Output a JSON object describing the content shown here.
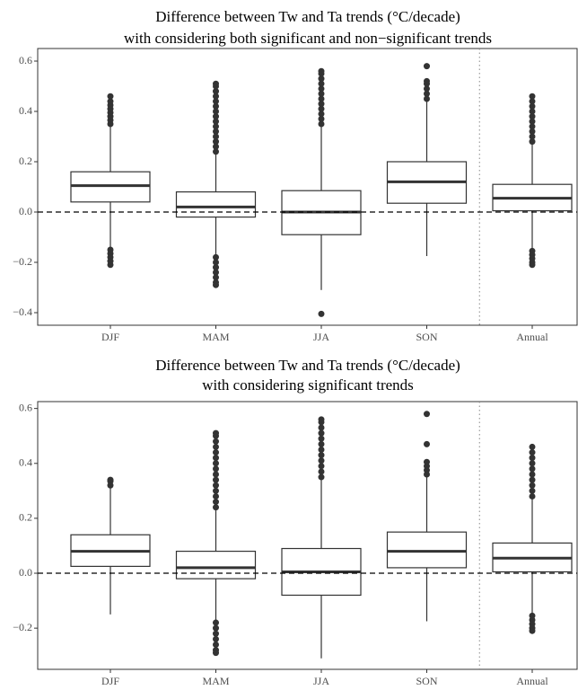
{
  "chart_data": [
    {
      "type": "box",
      "title": "Difference between Tw and Ta trends (°C/decade)",
      "subtitle": "with considering both significant and non−significant trends",
      "categories": [
        "DJF",
        "MAM",
        "JJA",
        "SON",
        "Annual"
      ],
      "boxes": [
        {
          "whislo": -0.14,
          "q1": 0.04,
          "med": 0.105,
          "q3": 0.16,
          "whishi": 0.345,
          "outliers": [
            0.35,
            0.365,
            0.38,
            0.395,
            0.41,
            0.425,
            0.44,
            0.46,
            -0.15,
            -0.165,
            -0.18,
            -0.195,
            -0.21
          ]
        },
        {
          "whislo": -0.17,
          "q1": -0.02,
          "med": 0.02,
          "q3": 0.08,
          "whishi": 0.23,
          "outliers": [
            0.24,
            0.26,
            0.28,
            0.3,
            0.32,
            0.34,
            0.36,
            0.38,
            0.4,
            0.42,
            0.44,
            0.46,
            0.48,
            0.5,
            0.51,
            -0.18,
            -0.2,
            -0.22,
            -0.24,
            -0.26,
            -0.28,
            -0.29
          ]
        },
        {
          "whislo": -0.31,
          "q1": -0.09,
          "med": 0.0,
          "q3": 0.085,
          "whishi": 0.34,
          "outliers": [
            0.35,
            0.37,
            0.39,
            0.41,
            0.43,
            0.45,
            0.47,
            0.49,
            0.51,
            0.53,
            0.55,
            0.56,
            -0.405
          ]
        },
        {
          "whislo": -0.175,
          "q1": 0.035,
          "med": 0.12,
          "q3": 0.2,
          "whishi": 0.44,
          "outliers": [
            0.45,
            0.47,
            0.49,
            0.51,
            0.52,
            0.58
          ]
        },
        {
          "whislo": -0.15,
          "q1": 0.005,
          "med": 0.055,
          "q3": 0.11,
          "whishi": 0.27,
          "outliers": [
            0.28,
            0.3,
            0.32,
            0.34,
            0.36,
            0.38,
            0.4,
            0.42,
            0.44,
            0.46,
            -0.155,
            -0.17,
            -0.185,
            -0.2,
            -0.21
          ]
        }
      ],
      "hline": 0,
      "ylim": [
        -0.45,
        0.65
      ],
      "yticks": [
        {
          "value": -0.4,
          "label": "−0.4"
        },
        {
          "value": -0.2,
          "label": "−0.2"
        },
        {
          "value": 0,
          "label": "0.0"
        },
        0.2,
        0.4,
        0.6
      ]
    },
    {
      "type": "box",
      "title": "Difference between Tw and Ta trends (°C/decade)",
      "subtitle": "with considering significant trends",
      "categories": [
        "DJF",
        "MAM",
        "JJA",
        "SON",
        "Annual"
      ],
      "boxes": [
        {
          "whislo": -0.15,
          "q1": 0.025,
          "med": 0.08,
          "q3": 0.14,
          "whishi": 0.32,
          "outliers": [
            0.32,
            0.335,
            0.34
          ]
        },
        {
          "whislo": -0.175,
          "q1": -0.02,
          "med": 0.02,
          "q3": 0.08,
          "whishi": 0.23,
          "outliers": [
            0.24,
            0.26,
            0.28,
            0.3,
            0.32,
            0.34,
            0.36,
            0.38,
            0.4,
            0.42,
            0.44,
            0.46,
            0.48,
            0.5,
            0.51,
            -0.18,
            -0.2,
            -0.22,
            -0.24,
            -0.26,
            -0.28,
            -0.29
          ]
        },
        {
          "whislo": -0.31,
          "q1": -0.08,
          "med": 0.005,
          "q3": 0.09,
          "whishi": 0.34,
          "outliers": [
            0.35,
            0.37,
            0.39,
            0.41,
            0.43,
            0.45,
            0.47,
            0.49,
            0.51,
            0.53,
            0.55,
            0.56
          ]
        },
        {
          "whislo": -0.175,
          "q1": 0.02,
          "med": 0.08,
          "q3": 0.15,
          "whishi": 0.35,
          "outliers": [
            0.36,
            0.375,
            0.39,
            0.405,
            0.47,
            0.58
          ]
        },
        {
          "whislo": -0.15,
          "q1": 0.005,
          "med": 0.055,
          "q3": 0.11,
          "whishi": 0.27,
          "outliers": [
            0.28,
            0.3,
            0.32,
            0.34,
            0.36,
            0.38,
            0.4,
            0.42,
            0.44,
            0.46,
            -0.155,
            -0.17,
            -0.185,
            -0.2,
            -0.21
          ]
        }
      ],
      "hline": 0,
      "ylim": [
        -0.35,
        0.625
      ],
      "yticks": [
        {
          "value": -0.2,
          "label": "−0.2"
        },
        {
          "value": 0,
          "label": "0.0"
        },
        0.2,
        0.4,
        0.6
      ]
    }
  ]
}
